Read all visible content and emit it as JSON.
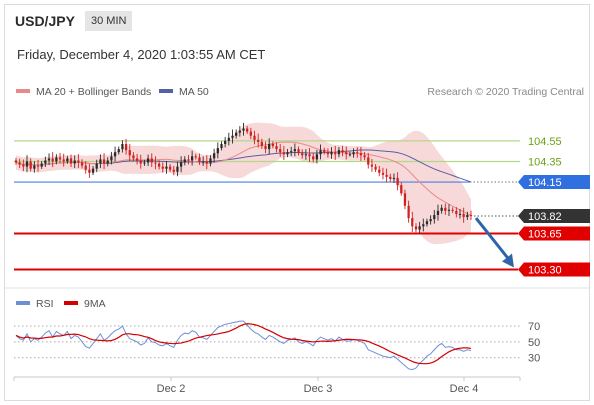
{
  "header": {
    "pair": "USD/JPY",
    "timeframe": "30 MIN",
    "datetime": "Friday, December 4, 2020 1:03:55 AM CET"
  },
  "legend": {
    "ma20": "MA 20 + Bollinger Bands",
    "ma50": "MA 50",
    "credit": "Research © 2020 Trading Central"
  },
  "rsi_legend": {
    "rsi": "RSI",
    "ma9": "9MA"
  },
  "colors": {
    "up": "#2a2a2a",
    "down": "#d21f1f",
    "bb": "#f6cccc",
    "ma20": "#e98a8a",
    "ma50": "#5561a4",
    "green_line": "#b2d88a",
    "blue_line": "#4b7fe0",
    "red_line": "#e00000",
    "arrow": "#2e65a8",
    "rsi_line": "#6e8fd6",
    "rsi_ma": "#d20000"
  },
  "chart_data": {
    "type": "candlestick",
    "price_ylim": [
      103.15,
      104.85
    ],
    "levels": [
      {
        "label": "104.55",
        "value": 104.55,
        "style": "green",
        "color": "#6aa315"
      },
      {
        "label": "104.35",
        "value": 104.35,
        "style": "green",
        "color": "#6aa315"
      },
      {
        "label": "104.15",
        "value": 104.15,
        "style": "blue",
        "color": "#2f6fe0"
      },
      {
        "label": "103.82",
        "value": 103.82,
        "style": "current",
        "color": "#333333"
      },
      {
        "label": "103.65",
        "value": 103.65,
        "style": "red",
        "color": "#e00000"
      },
      {
        "label": "103.30",
        "value": 103.3,
        "style": "red",
        "color": "#e00000"
      }
    ],
    "projection": {
      "from": 103.82,
      "to": 103.3
    },
    "x_ticks": [
      "Dec 2",
      "Dec 3",
      "Dec 4"
    ],
    "rsi_levels": [
      70,
      50,
      30
    ],
    "rsi_ylim": [
      12,
      80
    ],
    "close": [
      104.34,
      104.32,
      104.3,
      104.35,
      104.28,
      104.31,
      104.3,
      104.33,
      104.36,
      104.38,
      104.35,
      104.39,
      104.37,
      104.35,
      104.38,
      104.33,
      104.36,
      104.34,
      104.31,
      104.27,
      104.24,
      104.28,
      104.33,
      104.37,
      104.33,
      104.36,
      104.4,
      104.44,
      104.47,
      104.52,
      104.46,
      104.41,
      104.38,
      104.36,
      104.33,
      104.34,
      104.38,
      104.34,
      104.33,
      104.3,
      104.28,
      104.3,
      104.27,
      104.25,
      104.3,
      104.34,
      104.37,
      104.36,
      104.4,
      104.39,
      104.35,
      104.35,
      104.33,
      104.38,
      104.43,
      104.48,
      104.52,
      104.55,
      104.58,
      104.6,
      104.63,
      104.65,
      104.67,
      104.64,
      104.6,
      104.56,
      104.54,
      104.5,
      104.47,
      104.52,
      104.5,
      104.47,
      104.44,
      104.42,
      104.44,
      104.45,
      104.47,
      104.43,
      104.41,
      104.42,
      104.4,
      104.37,
      104.42,
      104.46,
      104.44,
      104.42,
      104.44,
      104.42,
      104.46,
      104.44,
      104.42,
      104.42,
      104.44,
      104.43,
      104.41,
      104.39,
      104.32,
      104.3,
      104.27,
      104.24,
      104.22,
      104.2,
      104.18,
      104.19,
      104.12,
      104.04,
      103.92,
      103.8,
      103.72,
      103.69,
      103.72,
      103.74,
      103.77,
      103.79,
      103.83,
      103.87,
      103.9,
      103.87,
      103.88,
      103.87,
      103.84,
      103.84,
      103.81,
      103.83,
      103.82
    ],
    "rsi": [
      58,
      54,
      52,
      60,
      50,
      54,
      52,
      56,
      61,
      64,
      56,
      63,
      60,
      58,
      63,
      54,
      58,
      56,
      50,
      44,
      42,
      48,
      54,
      60,
      52,
      55,
      60,
      64,
      66,
      70,
      60,
      54,
      52,
      50,
      46,
      48,
      55,
      50,
      49,
      46,
      45,
      48,
      45,
      43,
      52,
      58,
      61,
      60,
      64,
      62,
      56,
      55,
      53,
      58,
      63,
      68,
      70,
      72,
      73,
      74,
      75,
      76,
      76,
      71,
      66,
      62,
      60,
      56,
      53,
      58,
      56,
      53,
      50,
      48,
      52,
      53,
      55,
      50,
      48,
      50,
      48,
      45,
      52,
      56,
      54,
      52,
      54,
      51,
      56,
      53,
      51,
      51,
      53,
      52,
      50,
      48,
      40,
      38,
      36,
      34,
      32,
      31,
      30,
      32,
      28,
      24,
      20,
      16,
      15,
      17,
      23,
      27,
      32,
      35,
      40,
      45,
      48,
      43,
      44,
      43,
      40,
      40,
      38,
      40,
      39
    ]
  }
}
